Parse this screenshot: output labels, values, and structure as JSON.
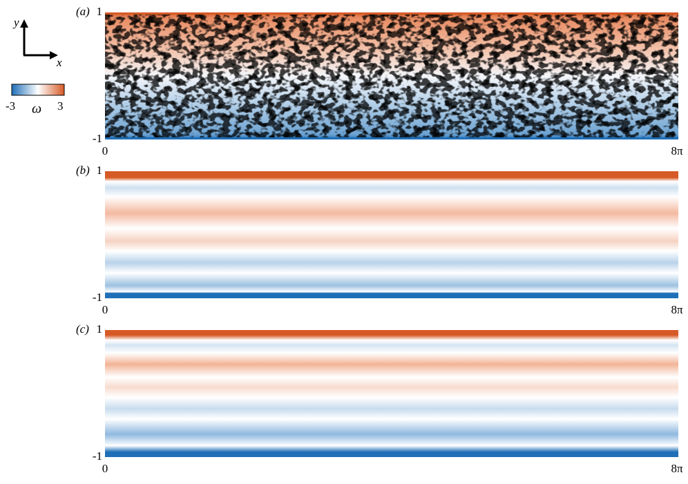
{
  "colorbar": {
    "min": -3,
    "symbol": "ω",
    "max": 3
  },
  "axes_icon": {
    "y": "y",
    "x": "x"
  },
  "panels": [
    {
      "label": "(a)",
      "y_top": 1,
      "y_bottom": -1,
      "x_left": 0,
      "x_right": "8π"
    },
    {
      "label": "(b)",
      "y_top": 1,
      "y_bottom": -1,
      "x_left": 0,
      "x_right": "8π"
    },
    {
      "label": "(c)",
      "y_top": 1,
      "y_bottom": -1,
      "x_left": 0,
      "x_right": "8π"
    }
  ]
}
